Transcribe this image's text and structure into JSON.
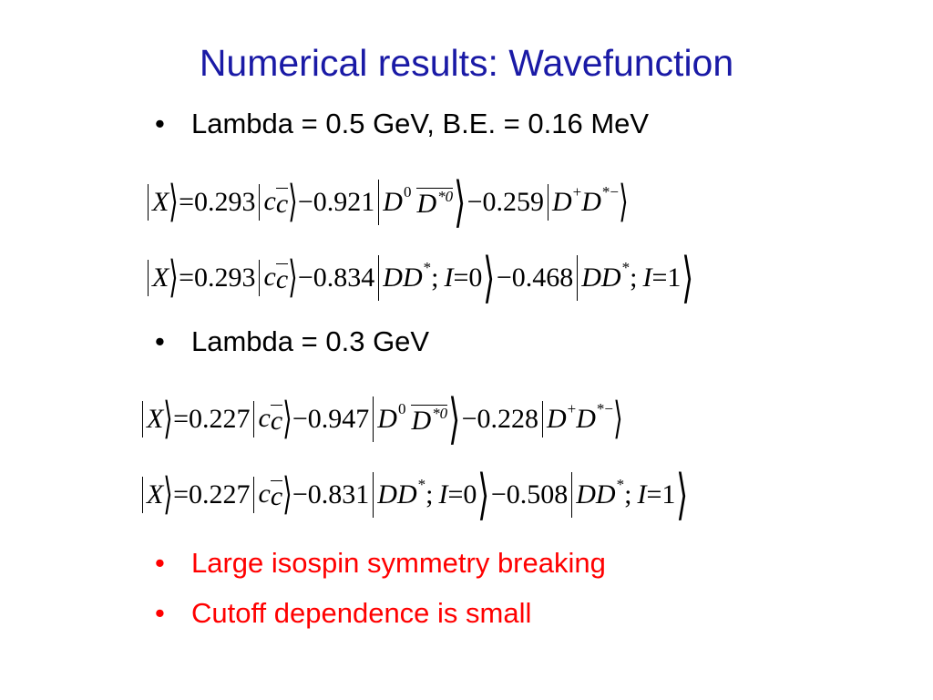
{
  "slide": {
    "title": "Numerical results: Wavefunction",
    "bullets": {
      "b1": "Lambda = 0.5 GeV, B.E. = 0.16 MeV",
      "b2": "Lambda = 0.3 GeV",
      "b3": "Large isospin symmetry breaking",
      "b4": "Cutoff dependence is small"
    },
    "bullet_glyph": "•",
    "colors": {
      "title": "#1a1aa6",
      "highlight": "#ff0000",
      "text": "#000000"
    },
    "eq": {
      "X": "X",
      "c": "c",
      "D": "D",
      "I": "I",
      "eqsign": "=",
      "minus": "−",
      "sup0": "0",
      "sup_star0": "*0",
      "sup_plus": "+",
      "sup_starminus": "*−",
      "sup_star": "*",
      "semicolon": ";",
      "zero": "0",
      "one": "1",
      "lambda05": {
        "charged": {
          "c1": "0.293",
          "c2": "0.921",
          "c3": "0.259"
        },
        "isospin": {
          "c1": "0.293",
          "c2": "0.834",
          "c3": "0.468"
        }
      },
      "lambda03": {
        "charged": {
          "c1": "0.227",
          "c2": "0.947",
          "c3": "0.228"
        },
        "isospin": {
          "c1": "0.227",
          "c2": "0.831",
          "c3": "0.508"
        }
      }
    }
  }
}
